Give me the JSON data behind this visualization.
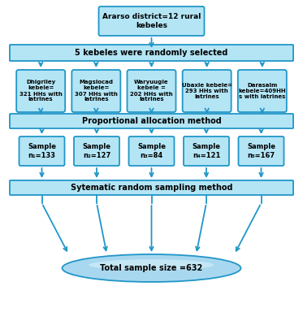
{
  "title_box": "Ararso district=12 rural\nkebeles",
  "level2_box": "5 kebeles were randomly selected",
  "level3_boxes": [
    "Dhigriley\nkebele=\n321 HHs with\nlatrines",
    "Magslocad\nkebele=\n307 HHs with\nlatrines",
    "Waryuugle\nkebele =\n202 HHs with\nlatrines",
    "Ubaxle kebele=\n293 HHs with\nlatrines",
    "Darasalm\nkebele=409HH\ns with latrines"
  ],
  "level4_box": "Proportional allocation method",
  "level5_boxes": [
    "Sample\nn₁=133",
    "Sample\nn₂=127",
    "Sample\nn₃=84",
    "Sample\nn₄=121",
    "Sample\nn₅=167"
  ],
  "level6_box": "Sytematic random sampling method",
  "oval_text": "Total sample size =632",
  "box_fill": "#b3e5f5",
  "box_edge": "#2196c8",
  "wide_box_fill": "#b3e5f5",
  "wide_box_edge": "#2196c8",
  "oval_fill_top": "#c8e8f8",
  "oval_fill_bottom": "#6bbfdf",
  "arrow_color": "#2196c8",
  "text_color": "#000000",
  "bold_font": true
}
